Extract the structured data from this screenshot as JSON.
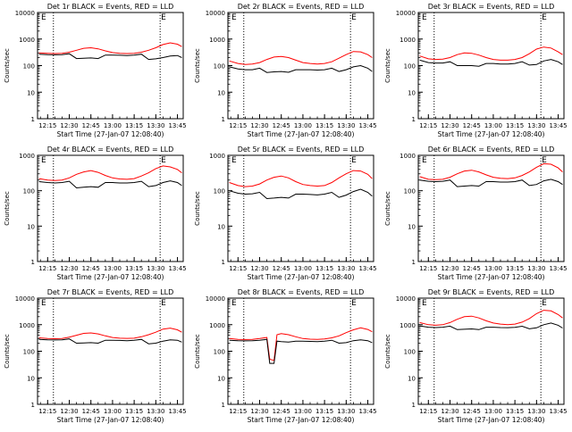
{
  "colors": {
    "events": "#000000",
    "lld": "#ff0000",
    "axis": "#000000"
  },
  "chart_data": [
    {
      "type": "line",
      "title": "Det 1r BLACK = Events, RED = LLD",
      "xlabel": "Start Time (27-Jan-07 12:08:40)",
      "ylabel": "Counts/sec",
      "y_scale": "log",
      "ylim": [
        1,
        10000
      ],
      "y_ticks": [
        1,
        10,
        100,
        1000,
        10000
      ],
      "x_ticks": [
        "12:15",
        "12:30",
        "12:45",
        "13:00",
        "13:15",
        "13:30",
        "13:45"
      ],
      "markers": [
        "E",
        "E"
      ],
      "x": [
        "12:09",
        "12:15",
        "12:20",
        "12:25",
        "12:30",
        "12:35",
        "12:40",
        "12:45",
        "12:50",
        "12:55",
        "13:00",
        "13:05",
        "13:10",
        "13:15",
        "13:20",
        "13:25",
        "13:30",
        "13:35",
        "13:40",
        "13:45",
        "13:48"
      ],
      "series": [
        {
          "color": "#ff0000",
          "values": [
            300,
            290,
            285,
            290,
            320,
            380,
            450,
            470,
            430,
            360,
            310,
            290,
            285,
            290,
            320,
            380,
            470,
            620,
            720,
            640,
            520
          ]
        },
        {
          "color": "#000000",
          "values": [
            270,
            260,
            255,
            260,
            280,
            185,
            190,
            195,
            185,
            250,
            250,
            245,
            240,
            250,
            270,
            170,
            180,
            200,
            230,
            240,
            200
          ]
        }
      ]
    },
    {
      "type": "line",
      "title": "Det 2r BLACK = Events, RED = LLD",
      "xlabel": "Start Time (27-Jan-07 12:08:40)",
      "ylabel": "Counts/sec",
      "y_scale": "log",
      "ylim": [
        1,
        10000
      ],
      "y_ticks": [
        1,
        10,
        100,
        1000,
        10000
      ],
      "x_ticks": [
        "12:15",
        "12:30",
        "12:45",
        "13:00",
        "13:15",
        "13:30",
        "13:45"
      ],
      "markers": [
        "E",
        "E"
      ],
      "x": [
        "12:09",
        "12:15",
        "12:20",
        "12:25",
        "12:30",
        "12:35",
        "12:40",
        "12:45",
        "12:50",
        "12:55",
        "13:00",
        "13:05",
        "13:10",
        "13:15",
        "13:20",
        "13:25",
        "13:30",
        "13:35",
        "13:40",
        "13:45",
        "13:48"
      ],
      "series": [
        {
          "color": "#ff0000",
          "values": [
            150,
            120,
            110,
            115,
            130,
            170,
            210,
            220,
            200,
            160,
            130,
            120,
            115,
            120,
            140,
            190,
            260,
            340,
            330,
            260,
            200
          ]
        },
        {
          "color": "#000000",
          "values": [
            90,
            75,
            70,
            70,
            80,
            55,
            58,
            60,
            56,
            70,
            70,
            70,
            68,
            70,
            80,
            60,
            70,
            90,
            100,
            80,
            60
          ]
        }
      ]
    },
    {
      "type": "line",
      "title": "Det 3r BLACK = Events, RED = LLD",
      "xlabel": "Start Time (27-Jan-07 12:08:40)",
      "ylabel": "Counts/sec",
      "y_scale": "log",
      "ylim": [
        1,
        10000
      ],
      "y_ticks": [
        1,
        10,
        100,
        1000,
        10000
      ],
      "x_ticks": [
        "12:15",
        "12:30",
        "12:45",
        "13:00",
        "13:15",
        "13:30",
        "13:45"
      ],
      "markers": [
        "E",
        "E"
      ],
      "x": [
        "12:09",
        "12:15",
        "12:20",
        "12:25",
        "12:30",
        "12:35",
        "12:40",
        "12:45",
        "12:50",
        "12:55",
        "13:00",
        "13:05",
        "13:10",
        "13:15",
        "13:20",
        "13:25",
        "13:30",
        "13:35",
        "13:40",
        "13:45",
        "13:48"
      ],
      "series": [
        {
          "color": "#ff0000",
          "values": [
            230,
            180,
            170,
            175,
            200,
            260,
            300,
            290,
            250,
            200,
            170,
            160,
            160,
            170,
            200,
            280,
            420,
            500,
            460,
            330,
            260
          ]
        },
        {
          "color": "#000000",
          "values": [
            160,
            130,
            125,
            125,
            140,
            100,
            100,
            100,
            95,
            120,
            120,
            115,
            115,
            120,
            140,
            105,
            110,
            150,
            170,
            140,
            110
          ]
        }
      ]
    },
    {
      "type": "line",
      "title": "Det 4r BLACK = Events, RED = LLD",
      "xlabel": "Start Time (27-Jan-07 12:08:40)",
      "ylabel": "Counts/sec",
      "y_scale": "log",
      "ylim": [
        1,
        1000
      ],
      "y_ticks": [
        1,
        10,
        100,
        1000
      ],
      "x_ticks": [
        "12:15",
        "12:30",
        "12:45",
        "13:00",
        "13:15",
        "13:30",
        "13:45"
      ],
      "markers": [
        "E",
        "E"
      ],
      "x": [
        "12:09",
        "12:15",
        "12:20",
        "12:25",
        "12:30",
        "12:35",
        "12:40",
        "12:45",
        "12:50",
        "12:55",
        "13:00",
        "13:05",
        "13:10",
        "13:15",
        "13:20",
        "13:25",
        "13:30",
        "13:35",
        "13:40",
        "13:45",
        "13:48"
      ],
      "series": [
        {
          "color": "#ff0000",
          "values": [
            220,
            200,
            195,
            200,
            230,
            290,
            340,
            370,
            330,
            270,
            230,
            215,
            210,
            220,
            260,
            320,
            420,
            500,
            470,
            400,
            320
          ]
        },
        {
          "color": "#000000",
          "values": [
            180,
            170,
            165,
            170,
            185,
            120,
            125,
            130,
            125,
            170,
            170,
            165,
            165,
            170,
            185,
            130,
            140,
            170,
            190,
            170,
            140
          ]
        }
      ]
    },
    {
      "type": "line",
      "title": "Det 5r BLACK = Events, RED = LLD",
      "xlabel": "Start Time (27-Jan-07 12:08:40)",
      "ylabel": "Counts/sec",
      "y_scale": "log",
      "ylim": [
        1,
        1000
      ],
      "y_ticks": [
        1,
        10,
        100,
        1000
      ],
      "x_ticks": [
        "12:15",
        "12:30",
        "12:45",
        "13:00",
        "13:15",
        "13:30",
        "13:45"
      ],
      "markers": [
        "E",
        "E"
      ],
      "x": [
        "12:09",
        "12:15",
        "12:20",
        "12:25",
        "12:30",
        "12:35",
        "12:40",
        "12:45",
        "12:50",
        "12:55",
        "13:00",
        "13:05",
        "13:10",
        "13:15",
        "13:20",
        "13:25",
        "13:30",
        "13:35",
        "13:40",
        "13:45",
        "13:48"
      ],
      "series": [
        {
          "color": "#ff0000",
          "values": [
            170,
            140,
            130,
            135,
            155,
            200,
            240,
            260,
            230,
            180,
            150,
            140,
            135,
            140,
            170,
            230,
            300,
            370,
            360,
            290,
            220
          ]
        },
        {
          "color": "#000000",
          "values": [
            100,
            85,
            80,
            82,
            90,
            60,
            62,
            65,
            62,
            80,
            80,
            78,
            76,
            80,
            90,
            65,
            75,
            95,
            110,
            90,
            70
          ]
        }
      ]
    },
    {
      "type": "line",
      "title": "Det 6r BLACK = Events, RED = LLD",
      "xlabel": "Start Time (27-Jan-07 12:08:40)",
      "ylabel": "Counts/sec",
      "y_scale": "log",
      "ylim": [
        1,
        1000
      ],
      "y_ticks": [
        1,
        10,
        100,
        1000
      ],
      "x_ticks": [
        "12:15",
        "12:30",
        "12:45",
        "13:00",
        "13:15",
        "13:30",
        "13:45"
      ],
      "markers": [
        "E",
        "E"
      ],
      "x": [
        "12:09",
        "12:15",
        "12:20",
        "12:25",
        "12:30",
        "12:35",
        "12:40",
        "12:45",
        "12:50",
        "12:55",
        "13:00",
        "13:05",
        "13:10",
        "13:15",
        "13:20",
        "13:25",
        "13:30",
        "13:35",
        "13:40",
        "13:45",
        "13:48"
      ],
      "series": [
        {
          "color": "#ff0000",
          "values": [
            250,
            210,
            205,
            210,
            240,
            300,
            360,
            380,
            340,
            280,
            240,
            225,
            220,
            230,
            270,
            340,
            460,
            580,
            560,
            440,
            340
          ]
        },
        {
          "color": "#000000",
          "values": [
            200,
            185,
            180,
            185,
            200,
            130,
            135,
            140,
            135,
            180,
            180,
            175,
            175,
            180,
            200,
            140,
            150,
            190,
            210,
            180,
            150
          ]
        }
      ]
    },
    {
      "type": "line",
      "title": "Det 7r BLACK = Events, RED = LLD",
      "xlabel": "Start Time (27-Jan-07 12:08:40)",
      "ylabel": "Counts/sec",
      "y_scale": "log",
      "ylim": [
        1,
        10000
      ],
      "y_ticks": [
        1,
        10,
        100,
        1000,
        10000
      ],
      "x_ticks": [
        "12:15",
        "12:30",
        "12:45",
        "13:00",
        "13:15",
        "13:30",
        "13:45"
      ],
      "markers": [
        "E",
        "E"
      ],
      "x": [
        "12:09",
        "12:15",
        "12:20",
        "12:25",
        "12:30",
        "12:35",
        "12:40",
        "12:45",
        "12:50",
        "12:55",
        "13:00",
        "13:05",
        "13:10",
        "13:15",
        "13:20",
        "13:25",
        "13:30",
        "13:35",
        "13:40",
        "13:45",
        "13:48"
      ],
      "series": [
        {
          "color": "#ff0000",
          "values": [
            320,
            300,
            295,
            300,
            340,
            400,
            470,
            490,
            450,
            380,
            330,
            310,
            305,
            310,
            350,
            420,
            520,
            680,
            740,
            640,
            520
          ]
        },
        {
          "color": "#000000",
          "values": [
            280,
            270,
            265,
            270,
            290,
            200,
            205,
            210,
            200,
            260,
            260,
            255,
            250,
            260,
            280,
            190,
            200,
            240,
            270,
            260,
            220
          ]
        }
      ]
    },
    {
      "type": "line",
      "title": "Det 8r BLACK = Events, RED = LLD",
      "xlabel": "Start Time (27-Jan-07 12:08:40)",
      "ylabel": "Counts/sec",
      "y_scale": "log",
      "ylim": [
        1,
        10000
      ],
      "y_ticks": [
        1,
        10,
        100,
        1000,
        10000
      ],
      "x_ticks": [
        "12:15",
        "12:30",
        "12:45",
        "13:00",
        "13:15",
        "13:30",
        "13:45"
      ],
      "markers": [
        "E",
        "E"
      ],
      "x": [
        "12:09",
        "12:15",
        "12:20",
        "12:25",
        "12:30",
        "12:35",
        "12:37",
        "12:40",
        "12:42",
        "12:45",
        "12:50",
        "12:55",
        "13:00",
        "13:05",
        "13:10",
        "13:15",
        "13:20",
        "13:25",
        "13:30",
        "13:35",
        "13:40",
        "13:45",
        "13:48"
      ],
      "series": [
        {
          "color": "#ff0000",
          "values": [
            300,
            280,
            275,
            280,
            300,
            330,
            50,
            45,
            420,
            460,
            420,
            350,
            300,
            285,
            280,
            290,
            320,
            380,
            500,
            640,
            760,
            660,
            540
          ]
        },
        {
          "color": "#000000",
          "values": [
            260,
            250,
            245,
            250,
            260,
            280,
            35,
            35,
            240,
            230,
            220,
            240,
            240,
            235,
            230,
            240,
            260,
            200,
            210,
            250,
            270,
            250,
            210
          ]
        }
      ]
    },
    {
      "type": "line",
      "title": "Det 9r BLACK = Events, RED = LLD",
      "xlabel": "Start Time (27-Jan-07 12:08:40)",
      "ylabel": "Counts/sec",
      "y_scale": "log",
      "ylim": [
        1,
        10000
      ],
      "y_ticks": [
        1,
        10,
        100,
        1000,
        10000
      ],
      "x_ticks": [
        "12:15",
        "12:30",
        "12:45",
        "13:00",
        "13:15",
        "13:30",
        "13:45"
      ],
      "markers": [
        "E",
        "E"
      ],
      "x": [
        "12:09",
        "12:15",
        "12:20",
        "12:25",
        "12:30",
        "12:35",
        "12:40",
        "12:45",
        "12:50",
        "12:55",
        "13:00",
        "13:05",
        "13:10",
        "13:15",
        "13:20",
        "13:25",
        "13:30",
        "13:35",
        "13:40",
        "13:45",
        "13:48"
      ],
      "series": [
        {
          "color": "#ff0000",
          "values": [
            1200,
            1000,
            950,
            1000,
            1200,
            1600,
            2000,
            2100,
            1800,
            1400,
            1150,
            1050,
            1000,
            1050,
            1250,
            1700,
            2600,
            3500,
            3300,
            2400,
            1800
          ]
        },
        {
          "color": "#000000",
          "values": [
            900,
            800,
            780,
            800,
            880,
            650,
            670,
            690,
            650,
            800,
            800,
            780,
            770,
            790,
            870,
            700,
            760,
            1000,
            1150,
            950,
            750
          ]
        }
      ]
    }
  ]
}
